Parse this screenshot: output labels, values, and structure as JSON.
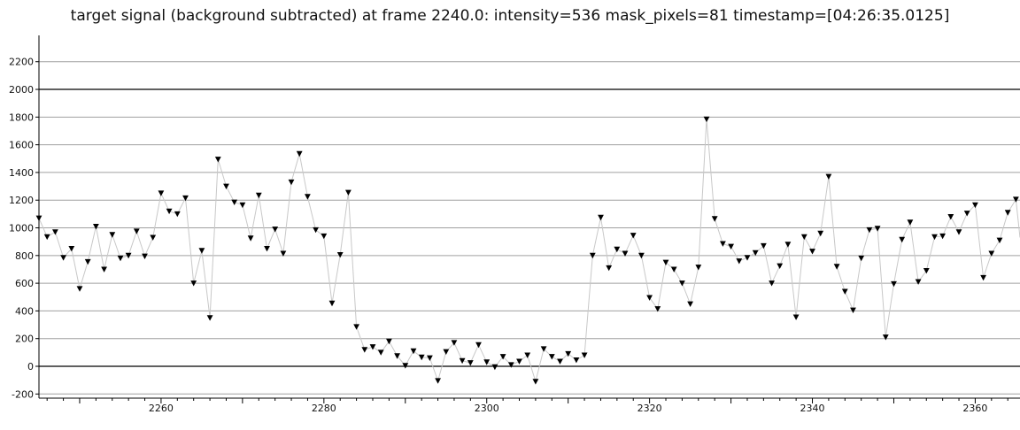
{
  "chart_data": {
    "type": "line",
    "title": "target signal (background subtracted) at frame 2240.0: intensity=536 mask_pixels=81 timestamp=[04:26:35.0125]",
    "xlim": [
      2245,
      2365.5
    ],
    "ylim": [
      -230,
      2390
    ],
    "x_ticks": [
      2260,
      2280,
      2300,
      2320,
      2340,
      2360
    ],
    "y_ticks": [
      -200,
      0,
      200,
      400,
      600,
      800,
      1000,
      1200,
      1400,
      1600,
      1800,
      2000,
      2200
    ],
    "grid": true,
    "marker": "down-triangle",
    "line_color": "#c8c8c8",
    "marker_color": "#000000",
    "series": [
      {
        "x": [
          2245,
          2246,
          2247,
          2248,
          2249,
          2250,
          2251,
          2252,
          2253,
          2254,
          2255,
          2256,
          2257,
          2258,
          2259,
          2260,
          2261,
          2262,
          2263,
          2264,
          2265,
          2266,
          2267,
          2268,
          2269,
          2270,
          2271,
          2272,
          2273,
          2274,
          2275,
          2276,
          2277,
          2278,
          2279,
          2280,
          2281,
          2282,
          2283,
          2284,
          2285,
          2286,
          2287,
          2288,
          2289,
          2290,
          2291,
          2292,
          2293,
          2294,
          2295,
          2296,
          2297,
          2298,
          2299,
          2300,
          2301,
          2302,
          2303,
          2304,
          2305,
          2306,
          2307,
          2308,
          2309,
          2310,
          2311,
          2312,
          2313,
          2314,
          2315,
          2316,
          2317,
          2318,
          2319,
          2320,
          2321,
          2322,
          2323,
          2324,
          2325,
          2326,
          2327,
          2328,
          2329,
          2330,
          2331,
          2332,
          2333,
          2334,
          2335,
          2336,
          2337,
          2338,
          2339,
          2340,
          2341,
          2342,
          2343,
          2344,
          2345,
          2346,
          2347,
          2348,
          2349,
          2350,
          2351,
          2352,
          2353,
          2354,
          2355,
          2356,
          2357,
          2358,
          2359,
          2360,
          2361,
          2362,
          2363,
          2364,
          2365
        ],
        "y": [
          1070,
          935,
          970,
          785,
          850,
          560,
          755,
          1010,
          700,
          950,
          780,
          800,
          975,
          795,
          930,
          1250,
          1120,
          1100,
          1215,
          600,
          835,
          350,
          1495,
          1300,
          1185,
          1165,
          925,
          1235,
          850,
          990,
          815,
          1330,
          1535,
          1225,
          985,
          940,
          455,
          805,
          1255,
          285,
          120,
          140,
          100,
          180,
          75,
          5,
          110,
          65,
          60,
          -105,
          105,
          170,
          40,
          25,
          155,
          30,
          -5,
          70,
          10,
          35,
          80,
          -110,
          125,
          70,
          35,
          90,
          45,
          80,
          800,
          1075,
          710,
          845,
          815,
          945,
          800,
          495,
          415,
          750,
          700,
          600,
          450,
          715,
          1785,
          1065,
          885,
          865,
          760,
          785,
          820,
          870,
          600,
          725,
          880,
          355,
          935,
          830,
          960,
          1370,
          720,
          540,
          405,
          780,
          985,
          995,
          210,
          595,
          915,
          1040,
          610,
          690,
          935,
          940,
          1080,
          970,
          1105,
          1165,
          640,
          815,
          910,
          1110,
          1205
        ]
      }
    ]
  }
}
